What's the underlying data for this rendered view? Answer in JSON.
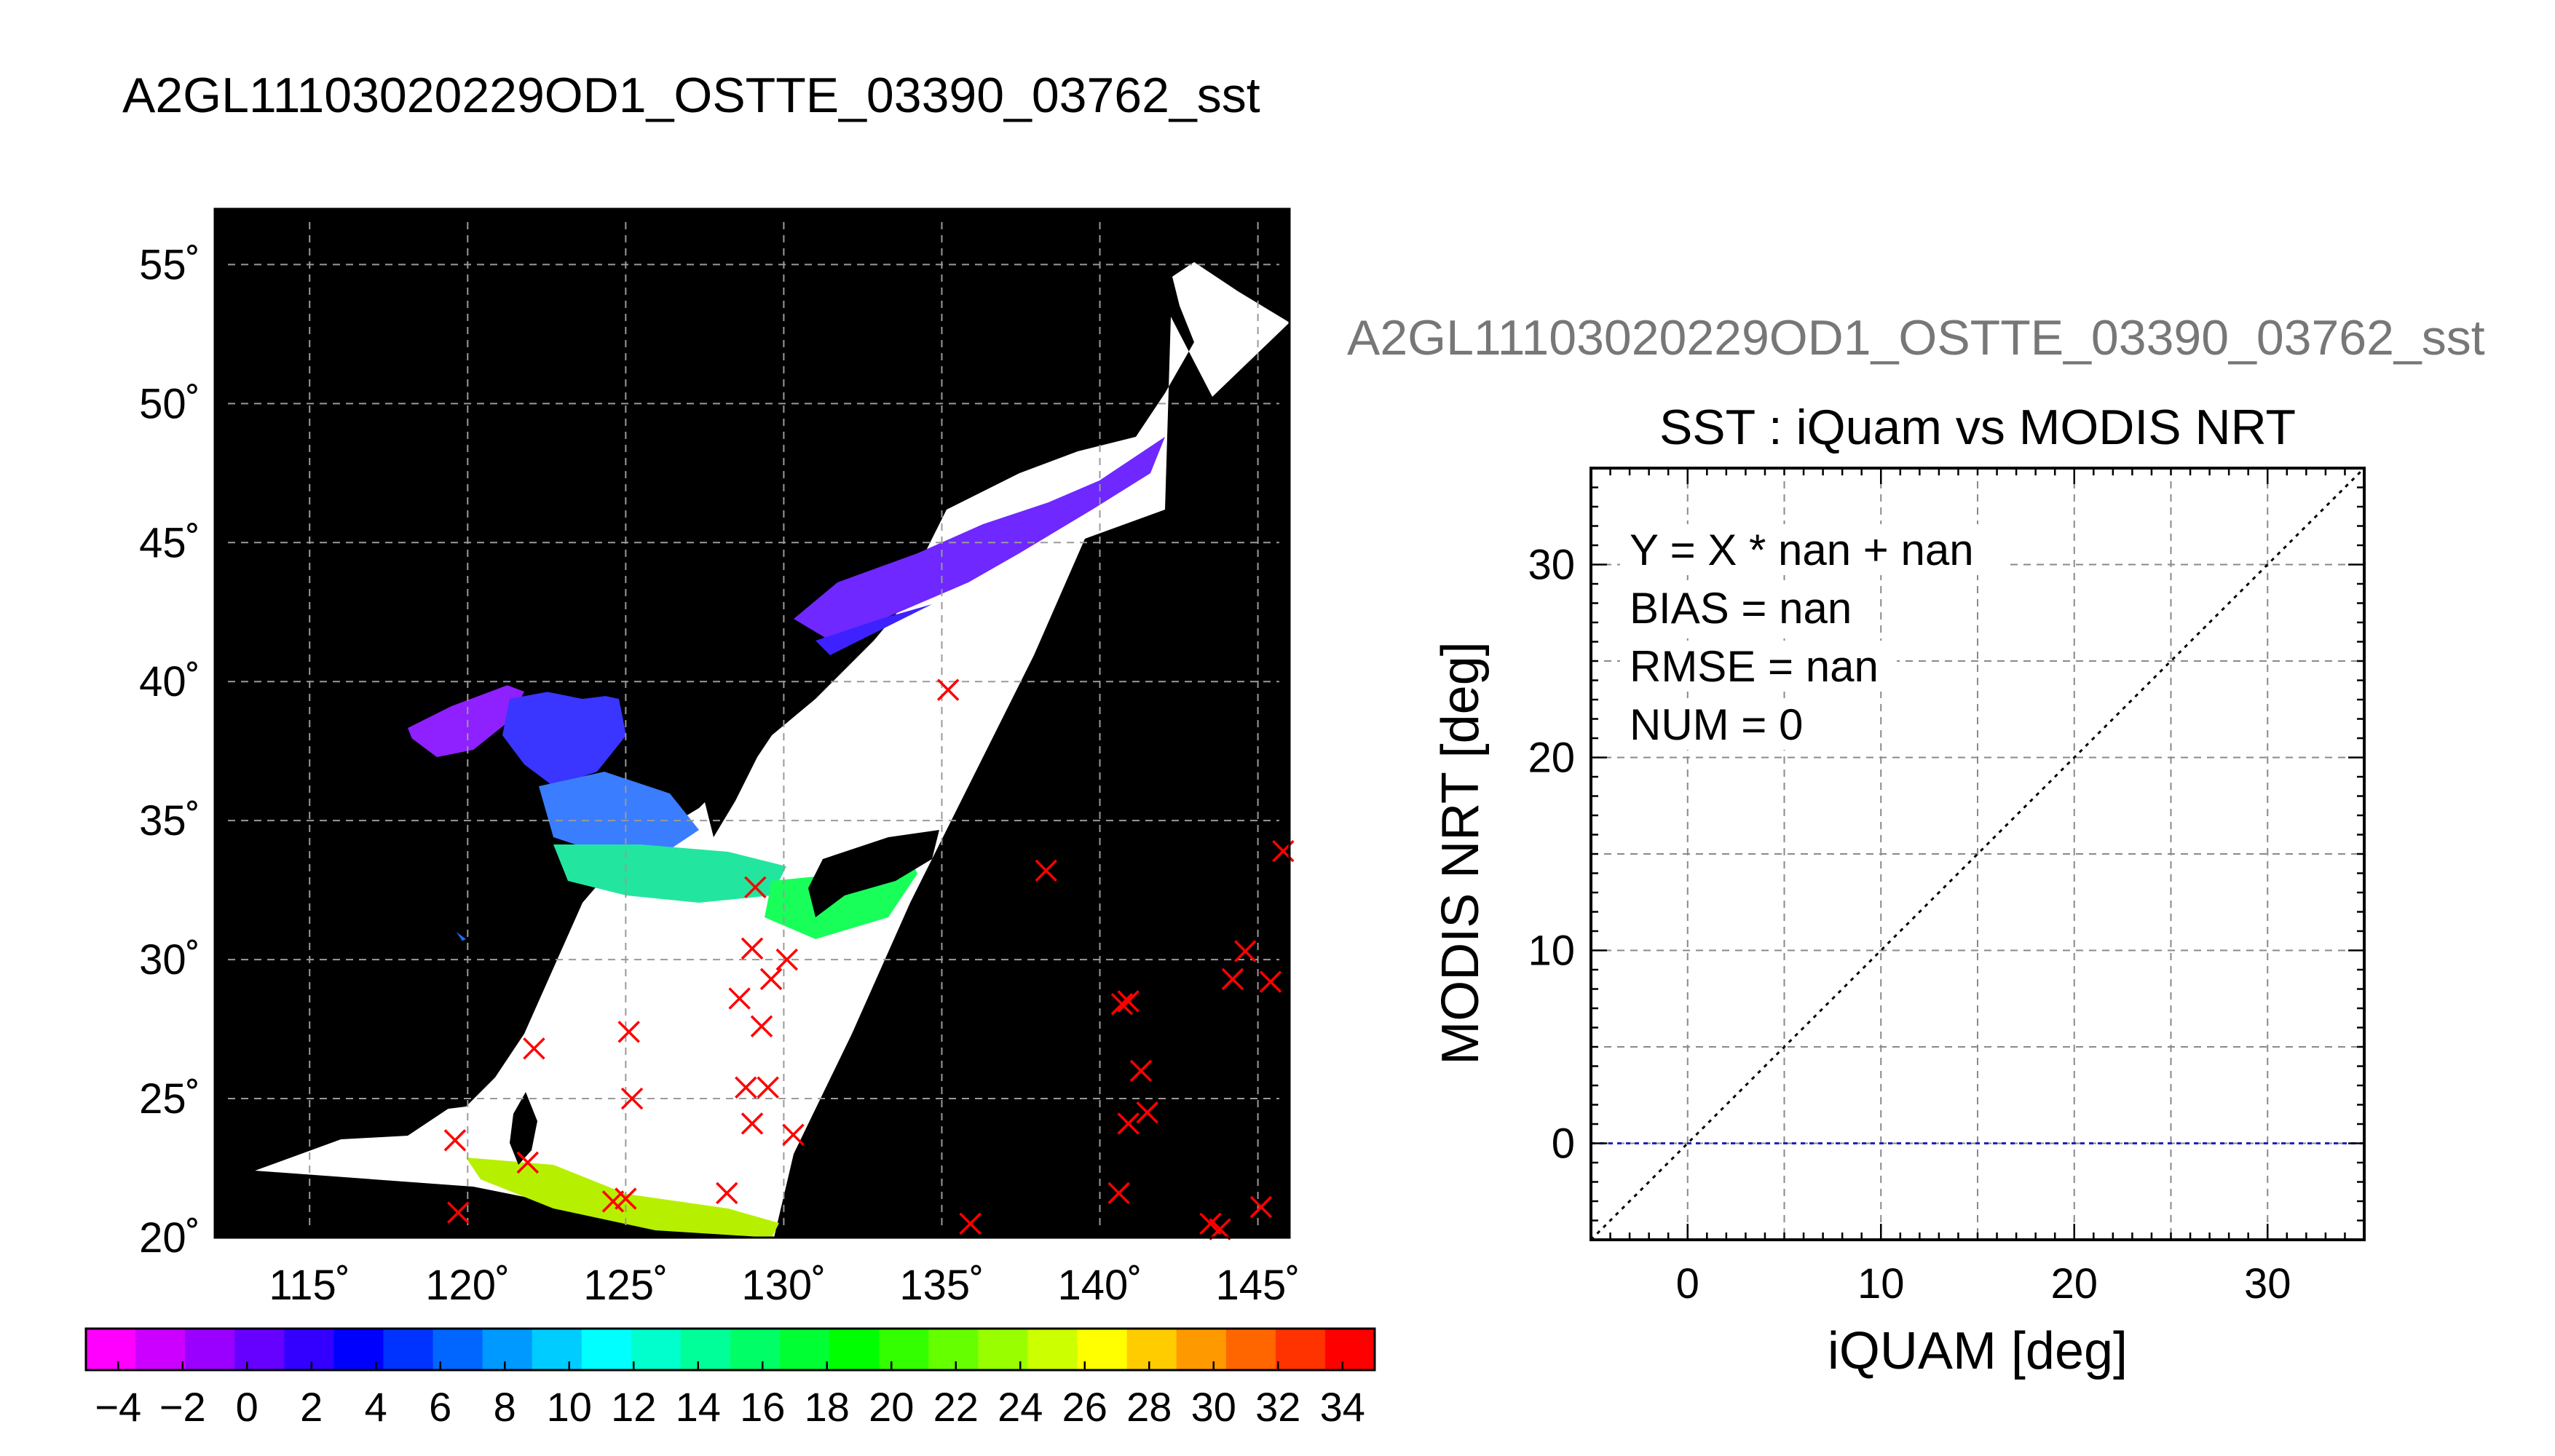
{
  "main_title": "A2GL11103020229OD1_OSTTE_03390_03762_sst",
  "scatter_file_title": "A2GL11103020229OD1_OSTTE_03390_03762_sst",
  "chart_data": [
    {
      "type": "map",
      "title": "A2GL11103020229OD1_OSTTE_03390_03762_sst",
      "xlim": [
        112,
        146
      ],
      "ylim": [
        20,
        57
      ],
      "x_ticks": [
        115,
        120,
        125,
        130,
        135,
        140,
        145
      ],
      "y_ticks": [
        20,
        25,
        30,
        35,
        40,
        45,
        50,
        55
      ],
      "x_tick_labels": [
        "115˚",
        "120˚",
        "125˚",
        "130˚",
        "135˚",
        "140˚",
        "145˚"
      ],
      "y_tick_labels": [
        "20˚",
        "25˚",
        "30˚",
        "35˚",
        "40˚",
        "45˚",
        "50˚",
        "55˚"
      ],
      "grid": true,
      "background_color": "#000000",
      "marker_color": "#ff0000",
      "matchup_points": [
        [
          135.2,
          39.7
        ],
        [
          138.3,
          33.2
        ],
        [
          145.8,
          33.9
        ],
        [
          129.1,
          32.6
        ],
        [
          129.0,
          30.4
        ],
        [
          130.1,
          30.0
        ],
        [
          129.6,
          29.3
        ],
        [
          128.6,
          28.6
        ],
        [
          129.3,
          27.6
        ],
        [
          122.1,
          26.8
        ],
        [
          125.1,
          27.4
        ],
        [
          125.2,
          25.0
        ],
        [
          128.8,
          25.4
        ],
        [
          129.5,
          25.4
        ],
        [
          129.0,
          24.1
        ],
        [
          130.3,
          23.7
        ],
        [
          119.6,
          23.5
        ],
        [
          121.9,
          22.7
        ],
        [
          124.6,
          21.3
        ],
        [
          125.0,
          21.4
        ],
        [
          128.2,
          21.6
        ],
        [
          119.7,
          20.9
        ],
        [
          135.9,
          20.5
        ],
        [
          144.6,
          30.3
        ],
        [
          144.2,
          29.3
        ],
        [
          145.4,
          29.2
        ],
        [
          140.7,
          28.4
        ],
        [
          140.9,
          28.5
        ],
        [
          141.3,
          26.0
        ],
        [
          140.9,
          24.1
        ],
        [
          141.5,
          24.5
        ],
        [
          140.6,
          21.6
        ],
        [
          143.5,
          20.5
        ],
        [
          143.8,
          20.3
        ],
        [
          145.1,
          21.1
        ]
      ]
    },
    {
      "type": "colorbar",
      "range": [
        -5,
        35
      ],
      "tick_labels": [
        "−4",
        "−2",
        "0",
        "2",
        "4",
        "6",
        "8",
        "10",
        "12",
        "14",
        "16",
        "18",
        "20",
        "22",
        "24",
        "26",
        "28",
        "30",
        "32",
        "34"
      ],
      "tick_values": [
        -4,
        -2,
        0,
        2,
        4,
        6,
        8,
        10,
        12,
        14,
        16,
        18,
        20,
        22,
        24,
        26,
        28,
        30,
        32,
        34
      ],
      "colors": [
        "#ff00ff",
        "#cc00ff",
        "#9900ff",
        "#6600ff",
        "#3300ff",
        "#0000ff",
        "#0033ff",
        "#0066ff",
        "#0099ff",
        "#00ccff",
        "#00ffff",
        "#00ffcc",
        "#00ff99",
        "#00ff66",
        "#00ff33",
        "#00ff00",
        "#33ff00",
        "#66ff00",
        "#99ff00",
        "#ccff00",
        "#ffff00",
        "#ffcc00",
        "#ff9900",
        "#ff6600",
        "#ff3300",
        "#ff0000"
      ]
    },
    {
      "type": "scatter",
      "title": "SST : iQuam vs MODIS NRT",
      "xlabel": "iQUAM [deg]",
      "ylabel": "MODIS NRT [deg]",
      "xlim": [
        -5,
        35
      ],
      "ylim": [
        -5,
        35
      ],
      "x_ticks": [
        0,
        10,
        20,
        30
      ],
      "y_ticks": [
        0,
        10,
        20,
        30
      ],
      "grid": true,
      "grid_step": 5,
      "points": [],
      "reference_line": {
        "type": "y=x",
        "style": "dotted",
        "color": "#000000"
      },
      "fit_line": {
        "type": "horizontal",
        "y": 0,
        "style": "dashed",
        "color": "#2222bb"
      },
      "stats": [
        "Y = X * nan + nan",
        "BIAS = nan",
        "RMSE = nan",
        "NUM = 0"
      ]
    }
  ]
}
